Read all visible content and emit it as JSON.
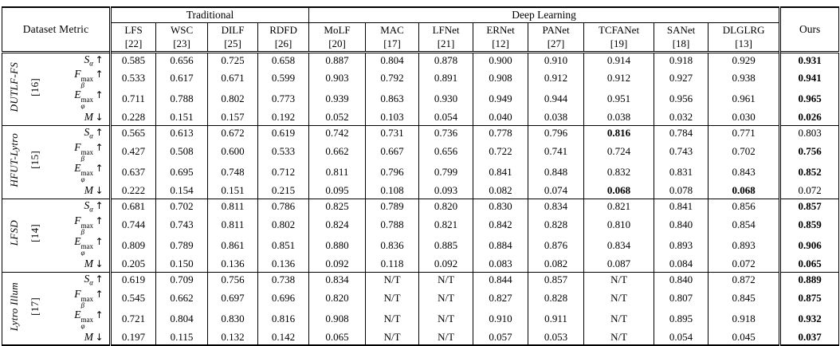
{
  "table": {
    "corner": "Dataset  Metric",
    "category_headers": [
      {
        "label": "Traditional",
        "span": 4
      },
      {
        "label": "Deep Learning",
        "span": 8
      }
    ],
    "ours_label": "Ours",
    "not_tested": "N/T",
    "methods": [
      {
        "name": "LFS",
        "cite": "[22]"
      },
      {
        "name": "WSC",
        "cite": "[23]"
      },
      {
        "name": "DILF",
        "cite": "[25]"
      },
      {
        "name": "RDFD",
        "cite": "[26]"
      },
      {
        "name": "MoLF",
        "cite": "[20]"
      },
      {
        "name": "MAC",
        "cite": "[17]"
      },
      {
        "name": "LFNet",
        "cite": "[21]"
      },
      {
        "name": "ERNet",
        "cite": "[12]"
      },
      {
        "name": "PANet",
        "cite": "[27]"
      },
      {
        "name": "TCFANet",
        "cite": "[19]"
      },
      {
        "name": "SANet",
        "cite": "[18]"
      },
      {
        "name": "DLGLRG",
        "cite": "[13]"
      }
    ],
    "metrics": [
      {
        "base": "S",
        "sub": "α",
        "sup": "",
        "arrow": "↑"
      },
      {
        "base": "F",
        "sub": "β",
        "sup": "max",
        "arrow": "↑"
      },
      {
        "base": "E",
        "sub": "φ",
        "sup": "max",
        "arrow": "↑"
      },
      {
        "base": "M",
        "sub": "",
        "sup": "",
        "arrow": "↓"
      }
    ],
    "groups": [
      {
        "dataset": "DUTLF-FS",
        "cite": "[16]",
        "rows": [
          {
            "values": [
              "0.585",
              "0.656",
              "0.725",
              "0.658",
              "0.887",
              "0.804",
              "0.878",
              "0.900",
              "0.910",
              "0.914",
              "0.918",
              "0.929",
              "0.931"
            ],
            "bold": [
              12
            ]
          },
          {
            "values": [
              "0.533",
              "0.617",
              "0.671",
              "0.599",
              "0.903",
              "0.792",
              "0.891",
              "0.908",
              "0.912",
              "0.912",
              "0.927",
              "0.938",
              "0.941"
            ],
            "bold": [
              12
            ]
          },
          {
            "values": [
              "0.711",
              "0.788",
              "0.802",
              "0.773",
              "0.939",
              "0.863",
              "0.930",
              "0.949",
              "0.944",
              "0.951",
              "0.956",
              "0.961",
              "0.965"
            ],
            "bold": [
              12
            ]
          },
          {
            "values": [
              "0.228",
              "0.151",
              "0.157",
              "0.192",
              "0.052",
              "0.103",
              "0.054",
              "0.040",
              "0.038",
              "0.038",
              "0.032",
              "0.030",
              "0.026"
            ],
            "bold": [
              12
            ]
          }
        ]
      },
      {
        "dataset": "HFUT-Lytro",
        "cite": "[15]",
        "rows": [
          {
            "values": [
              "0.565",
              "0.613",
              "0.672",
              "0.619",
              "0.742",
              "0.731",
              "0.736",
              "0.778",
              "0.796",
              "0.816",
              "0.784",
              "0.771",
              "0.803"
            ],
            "bold": [
              9
            ]
          },
          {
            "values": [
              "0.427",
              "0.508",
              "0.600",
              "0.533",
              "0.662",
              "0.667",
              "0.656",
              "0.722",
              "0.741",
              "0.724",
              "0.743",
              "0.702",
              "0.756"
            ],
            "bold": [
              12
            ]
          },
          {
            "values": [
              "0.637",
              "0.695",
              "0.748",
              "0.712",
              "0.811",
              "0.796",
              "0.799",
              "0.841",
              "0.848",
              "0.832",
              "0.831",
              "0.843",
              "0.852"
            ],
            "bold": [
              12
            ]
          },
          {
            "values": [
              "0.222",
              "0.154",
              "0.151",
              "0.215",
              "0.095",
              "0.108",
              "0.093",
              "0.082",
              "0.074",
              "0.068",
              "0.078",
              "0.068",
              "0.072"
            ],
            "bold": [
              9,
              11
            ]
          }
        ]
      },
      {
        "dataset": "LFSD",
        "cite": "[14]",
        "rows": [
          {
            "values": [
              "0.681",
              "0.702",
              "0.811",
              "0.786",
              "0.825",
              "0.789",
              "0.820",
              "0.830",
              "0.834",
              "0.821",
              "0.841",
              "0.856",
              "0.857"
            ],
            "bold": [
              12
            ]
          },
          {
            "values": [
              "0.744",
              "0.743",
              "0.811",
              "0.802",
              "0.824",
              "0.788",
              "0.821",
              "0.842",
              "0.828",
              "0.810",
              "0.840",
              "0.854",
              "0.859"
            ],
            "bold": [
              12
            ]
          },
          {
            "values": [
              "0.809",
              "0.789",
              "0.861",
              "0.851",
              "0.880",
              "0.836",
              "0.885",
              "0.884",
              "0.876",
              "0.834",
              "0.893",
              "0.893",
              "0.906"
            ],
            "bold": [
              12
            ]
          },
          {
            "values": [
              "0.205",
              "0.150",
              "0.136",
              "0.136",
              "0.092",
              "0.118",
              "0.092",
              "0.083",
              "0.082",
              "0.087",
              "0.084",
              "0.072",
              "0.065"
            ],
            "bold": [
              12
            ]
          }
        ]
      },
      {
        "dataset": "Lytro Illum",
        "cite": "[17]",
        "rows": [
          {
            "values": [
              "0.619",
              "0.709",
              "0.756",
              "0.738",
              "0.834",
              "N/T",
              "N/T",
              "0.844",
              "0.857",
              "N/T",
              "0.840",
              "0.872",
              "0.889"
            ],
            "bold": [
              12
            ]
          },
          {
            "values": [
              "0.545",
              "0.662",
              "0.697",
              "0.696",
              "0.820",
              "N/T",
              "N/T",
              "0.827",
              "0.828",
              "N/T",
              "0.807",
              "0.845",
              "0.875"
            ],
            "bold": [
              12
            ]
          },
          {
            "values": [
              "0.721",
              "0.804",
              "0.830",
              "0.816",
              "0.908",
              "N/T",
              "N/T",
              "0.910",
              "0.911",
              "N/T",
              "0.895",
              "0.918",
              "0.932"
            ],
            "bold": [
              12
            ]
          },
          {
            "values": [
              "0.197",
              "0.115",
              "0.132",
              "0.142",
              "0.065",
              "N/T",
              "N/T",
              "0.057",
              "0.053",
              "N/T",
              "0.054",
              "0.045",
              "0.037"
            ],
            "bold": [
              12
            ]
          }
        ]
      }
    ]
  }
}
